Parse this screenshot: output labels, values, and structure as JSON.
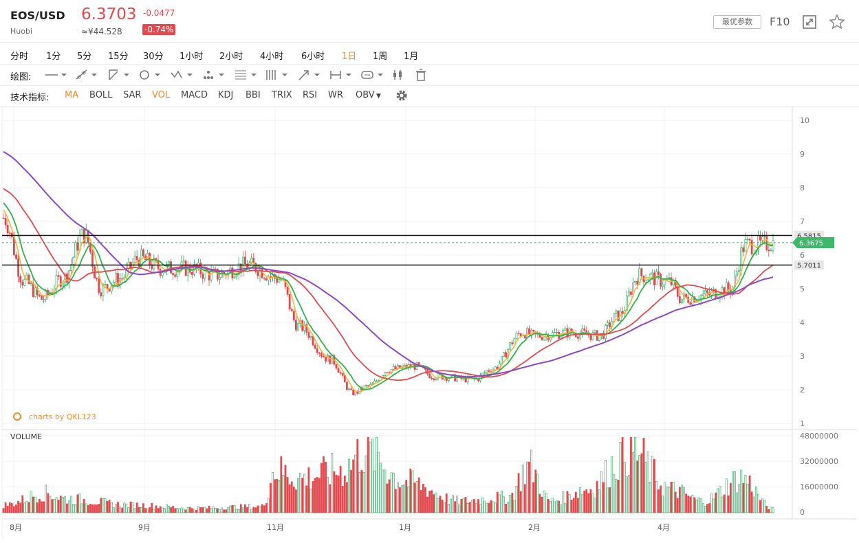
{
  "header": {
    "symbol": "EOS/USD",
    "exchange": "Huobi",
    "price": "6.3703",
    "price_cny": "≈¥44.528",
    "change": "-0.0477",
    "change_pct": "-0.74%",
    "best_params_label": "最优参数",
    "f10_label": "F10",
    "up_color": "#e5484d",
    "down_color": "#26a65b"
  },
  "periods": [
    {
      "label": "分时"
    },
    {
      "label": "1分"
    },
    {
      "label": "5分"
    },
    {
      "label": "15分"
    },
    {
      "label": "30分"
    },
    {
      "label": "1小时"
    },
    {
      "label": "2小时"
    },
    {
      "label": "4小时"
    },
    {
      "label": "6小时"
    },
    {
      "label": "1日",
      "active": true
    },
    {
      "label": "1周"
    },
    {
      "label": "1月"
    }
  ],
  "drawing": {
    "label": "绘图:",
    "tools": [
      "line-tool-icon",
      "ray-tool-icon",
      "channel-tool-icon",
      "circle-tool-icon",
      "wave-tool-icon",
      "pattern-tool-icon",
      "fib-tool-icon",
      "gann-tool-icon",
      "arrow-tool-icon",
      "measure-tool-icon",
      "text-tool-icon",
      "bars-tool-icon",
      "trash-icon"
    ]
  },
  "indicators": {
    "label": "技术指标:",
    "items": [
      {
        "label": "MA",
        "active": true
      },
      {
        "label": "BOLL"
      },
      {
        "label": "SAR"
      },
      {
        "label": "VOL",
        "active": true
      },
      {
        "label": "MACD"
      },
      {
        "label": "KDJ"
      },
      {
        "label": "BBI"
      },
      {
        "label": "TRIX"
      },
      {
        "label": "RSI"
      },
      {
        "label": "WR"
      },
      {
        "label": "OBV"
      }
    ]
  },
  "watermark": "charts by QKL123",
  "chart_data": {
    "type": "candlestick",
    "price_axis": {
      "ticks": [
        "10",
        "9",
        "8",
        "7",
        "6",
        "5",
        "4",
        "3",
        "2",
        "1"
      ],
      "range": [
        1,
        10
      ]
    },
    "volume_axis": {
      "label": "VOLUME",
      "ticks": [
        "48000000",
        "32000000",
        "16000000",
        "0"
      ],
      "range": [
        0,
        48000000
      ]
    },
    "x_ticks": [
      "8月",
      "9月",
      "11月",
      "1月",
      "2月",
      "4月"
    ],
    "current_price": "6.3675",
    "resistance": "6.5815",
    "support": "5.7011",
    "anchors": [
      [
        0,
        7.1
      ],
      [
        10,
        5.2
      ],
      [
        18,
        4.7
      ],
      [
        28,
        5.3
      ],
      [
        38,
        6.6
      ],
      [
        46,
        5.0
      ],
      [
        55,
        5.3
      ],
      [
        64,
        5.9
      ],
      [
        75,
        5.6
      ],
      [
        87,
        5.6
      ],
      [
        100,
        5.4
      ],
      [
        115,
        5.7
      ],
      [
        130,
        5.3
      ],
      [
        139,
        3.9
      ],
      [
        154,
        2.9
      ],
      [
        165,
        1.9
      ],
      [
        172,
        2.1
      ],
      [
        182,
        2.6
      ],
      [
        194,
        2.7
      ],
      [
        203,
        2.4
      ],
      [
        222,
        2.3
      ],
      [
        230,
        2.6
      ],
      [
        245,
        3.7
      ],
      [
        250,
        3.6
      ],
      [
        268,
        3.7
      ],
      [
        281,
        3.6
      ],
      [
        290,
        4.2
      ],
      [
        300,
        5.4
      ],
      [
        314,
        5.2
      ],
      [
        320,
        4.7
      ],
      [
        330,
        4.8
      ],
      [
        343,
        5.0
      ],
      [
        350,
        6.3
      ],
      [
        358,
        6.3
      ],
      [
        363,
        6.37
      ]
    ],
    "volume_shape": [
      [
        0,
        0.1
      ],
      [
        20,
        0.25
      ],
      [
        30,
        0.18
      ],
      [
        60,
        0.1
      ],
      [
        90,
        0.06
      ],
      [
        122,
        0.08
      ],
      [
        128,
        0.55
      ],
      [
        140,
        0.45
      ],
      [
        160,
        0.55
      ],
      [
        170,
        0.8
      ],
      [
        190,
        0.4
      ],
      [
        215,
        0.15
      ],
      [
        238,
        0.2
      ],
      [
        248,
        0.6
      ],
      [
        258,
        0.15
      ],
      [
        275,
        0.3
      ],
      [
        296,
        0.8
      ],
      [
        315,
        0.3
      ],
      [
        330,
        0.15
      ],
      [
        348,
        0.45
      ],
      [
        363,
        0.05
      ]
    ],
    "ma_colors": [
      "#f5b43a",
      "#2eb44a",
      "#e5484d",
      "#8a47c8"
    ]
  }
}
